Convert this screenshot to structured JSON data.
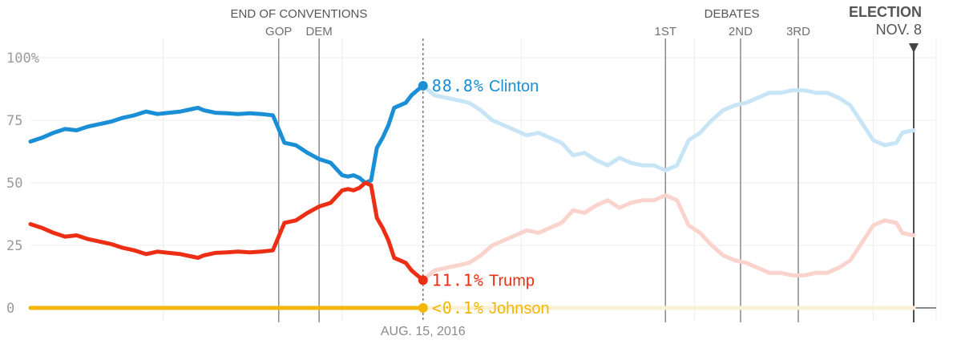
{
  "chart_data": {
    "type": "line",
    "y_ticks": [
      "100%",
      "75",
      "50",
      "25",
      "0"
    ],
    "ylim": [
      0,
      100
    ],
    "xlim": [
      "2016-06-08",
      "2016-11-08"
    ],
    "today": "2016-08-15",
    "today_label": "AUG. 15, 2016",
    "header": {
      "conventions": "END OF CONVENTIONS",
      "debates": "DEBATES",
      "election": "ELECTION",
      "election_date": "NOV. 8"
    },
    "events": [
      {
        "label": "GOP",
        "date": "2016-07-21"
      },
      {
        "label": "DEM",
        "date": "2016-07-28"
      },
      {
        "label": "1ST",
        "date": "2016-09-26"
      },
      {
        "label": "2ND",
        "date": "2016-10-09"
      },
      {
        "label": "3RD",
        "date": "2016-10-19"
      }
    ],
    "election_date": "2016-11-08",
    "series": [
      {
        "name": "Clinton",
        "color": "#1a8fd6",
        "faded_color": "#c8e5f6",
        "current_value": "88.8%",
        "values": [
          [
            "2016-06-08",
            66.5
          ],
          [
            "2016-06-10",
            68
          ],
          [
            "2016-06-12",
            70
          ],
          [
            "2016-06-14",
            71.5
          ],
          [
            "2016-06-16",
            71
          ],
          [
            "2016-06-18",
            72.5
          ],
          [
            "2016-06-20",
            73.5
          ],
          [
            "2016-06-22",
            74.5
          ],
          [
            "2016-06-24",
            76
          ],
          [
            "2016-06-26",
            77
          ],
          [
            "2016-06-28",
            78.5
          ],
          [
            "2016-06-30",
            77.5
          ],
          [
            "2016-07-02",
            78
          ],
          [
            "2016-07-04",
            78.5
          ],
          [
            "2016-07-06",
            79.5
          ],
          [
            "2016-07-07",
            80
          ],
          [
            "2016-07-08",
            79
          ],
          [
            "2016-07-10",
            78
          ],
          [
            "2016-07-12",
            77.8
          ],
          [
            "2016-07-14",
            77.5
          ],
          [
            "2016-07-16",
            77.8
          ],
          [
            "2016-07-18",
            77.5
          ],
          [
            "2016-07-20",
            77
          ],
          [
            "2016-07-22",
            66
          ],
          [
            "2016-07-24",
            65
          ],
          [
            "2016-07-26",
            62
          ],
          [
            "2016-07-28",
            59.5
          ],
          [
            "2016-07-30",
            58
          ],
          [
            "2016-08-01",
            53
          ],
          [
            "2016-08-02",
            52.5
          ],
          [
            "2016-08-03",
            53
          ],
          [
            "2016-08-04",
            52
          ],
          [
            "2016-08-05",
            50
          ],
          [
            "2016-08-06",
            51
          ],
          [
            "2016-08-07",
            64
          ],
          [
            "2016-08-08",
            68
          ],
          [
            "2016-08-09",
            73
          ],
          [
            "2016-08-10",
            80
          ],
          [
            "2016-08-11",
            81
          ],
          [
            "2016-08-12",
            82
          ],
          [
            "2016-08-13",
            85
          ],
          [
            "2016-08-14",
            87
          ],
          [
            "2016-08-15",
            88.8
          ]
        ],
        "projection": [
          [
            "2016-08-15",
            88.8
          ],
          [
            "2016-08-17",
            85
          ],
          [
            "2016-08-19",
            84
          ],
          [
            "2016-08-21",
            83
          ],
          [
            "2016-08-23",
            82
          ],
          [
            "2016-08-25",
            79
          ],
          [
            "2016-08-27",
            75
          ],
          [
            "2016-08-29",
            73
          ],
          [
            "2016-08-31",
            71
          ],
          [
            "2016-09-02",
            69
          ],
          [
            "2016-09-04",
            70
          ],
          [
            "2016-09-06",
            68
          ],
          [
            "2016-09-08",
            66
          ],
          [
            "2016-09-10",
            61
          ],
          [
            "2016-09-12",
            62
          ],
          [
            "2016-09-14",
            59
          ],
          [
            "2016-09-16",
            57
          ],
          [
            "2016-09-18",
            60
          ],
          [
            "2016-09-20",
            58
          ],
          [
            "2016-09-22",
            57
          ],
          [
            "2016-09-24",
            57
          ],
          [
            "2016-09-26",
            55
          ],
          [
            "2016-09-28",
            57
          ],
          [
            "2016-09-30",
            67
          ],
          [
            "2016-10-02",
            70
          ],
          [
            "2016-10-04",
            75
          ],
          [
            "2016-10-06",
            79
          ],
          [
            "2016-10-08",
            81
          ],
          [
            "2016-10-10",
            82
          ],
          [
            "2016-10-12",
            84
          ],
          [
            "2016-10-14",
            86
          ],
          [
            "2016-10-16",
            86
          ],
          [
            "2016-10-18",
            87
          ],
          [
            "2016-10-20",
            87
          ],
          [
            "2016-10-22",
            86
          ],
          [
            "2016-10-24",
            86
          ],
          [
            "2016-10-26",
            84
          ],
          [
            "2016-10-28",
            81
          ],
          [
            "2016-10-30",
            74
          ],
          [
            "2016-11-01",
            67
          ],
          [
            "2016-11-03",
            65
          ],
          [
            "2016-11-05",
            66
          ],
          [
            "2016-11-06",
            70
          ],
          [
            "2016-11-08",
            71
          ]
        ]
      },
      {
        "name": "Trump",
        "color": "#ec2f14",
        "faded_color": "#f9d3cc",
        "current_value": "11.1%",
        "values": [
          [
            "2016-06-08",
            33.5
          ],
          [
            "2016-06-10",
            32
          ],
          [
            "2016-06-12",
            30
          ],
          [
            "2016-06-14",
            28.5
          ],
          [
            "2016-06-16",
            29
          ],
          [
            "2016-06-18",
            27.5
          ],
          [
            "2016-06-20",
            26.5
          ],
          [
            "2016-06-22",
            25.5
          ],
          [
            "2016-06-24",
            24
          ],
          [
            "2016-06-26",
            23
          ],
          [
            "2016-06-28",
            21.5
          ],
          [
            "2016-06-30",
            22.5
          ],
          [
            "2016-07-02",
            22
          ],
          [
            "2016-07-04",
            21.5
          ],
          [
            "2016-07-06",
            20.5
          ],
          [
            "2016-07-07",
            20
          ],
          [
            "2016-07-08",
            21
          ],
          [
            "2016-07-10",
            22
          ],
          [
            "2016-07-12",
            22.2
          ],
          [
            "2016-07-14",
            22.5
          ],
          [
            "2016-07-16",
            22.2
          ],
          [
            "2016-07-18",
            22.5
          ],
          [
            "2016-07-20",
            23
          ],
          [
            "2016-07-22",
            34
          ],
          [
            "2016-07-24",
            35
          ],
          [
            "2016-07-26",
            38
          ],
          [
            "2016-07-28",
            40.5
          ],
          [
            "2016-07-30",
            42
          ],
          [
            "2016-08-01",
            47
          ],
          [
            "2016-08-02",
            47.5
          ],
          [
            "2016-08-03",
            47
          ],
          [
            "2016-08-04",
            48
          ],
          [
            "2016-08-05",
            50
          ],
          [
            "2016-08-06",
            49
          ],
          [
            "2016-08-07",
            36
          ],
          [
            "2016-08-08",
            32
          ],
          [
            "2016-08-09",
            27
          ],
          [
            "2016-08-10",
            20
          ],
          [
            "2016-08-11",
            19
          ],
          [
            "2016-08-12",
            18
          ],
          [
            "2016-08-13",
            15
          ],
          [
            "2016-08-14",
            13
          ],
          [
            "2016-08-15",
            11.1
          ]
        ],
        "projection": [
          [
            "2016-08-15",
            11.1
          ],
          [
            "2016-08-17",
            15
          ],
          [
            "2016-08-19",
            16
          ],
          [
            "2016-08-21",
            17
          ],
          [
            "2016-08-23",
            18
          ],
          [
            "2016-08-25",
            21
          ],
          [
            "2016-08-27",
            25
          ],
          [
            "2016-08-29",
            27
          ],
          [
            "2016-08-31",
            29
          ],
          [
            "2016-09-02",
            31
          ],
          [
            "2016-09-04",
            30
          ],
          [
            "2016-09-06",
            32
          ],
          [
            "2016-09-08",
            34
          ],
          [
            "2016-09-10",
            39
          ],
          [
            "2016-09-12",
            38
          ],
          [
            "2016-09-14",
            41
          ],
          [
            "2016-09-16",
            43
          ],
          [
            "2016-09-18",
            40
          ],
          [
            "2016-09-20",
            42
          ],
          [
            "2016-09-22",
            43
          ],
          [
            "2016-09-24",
            43
          ],
          [
            "2016-09-26",
            45
          ],
          [
            "2016-09-28",
            43
          ],
          [
            "2016-09-30",
            33
          ],
          [
            "2016-10-02",
            30
          ],
          [
            "2016-10-04",
            25
          ],
          [
            "2016-10-06",
            21
          ],
          [
            "2016-10-08",
            19
          ],
          [
            "2016-10-10",
            18
          ],
          [
            "2016-10-12",
            16
          ],
          [
            "2016-10-14",
            14
          ],
          [
            "2016-10-16",
            14
          ],
          [
            "2016-10-18",
            13
          ],
          [
            "2016-10-20",
            13
          ],
          [
            "2016-10-22",
            14
          ],
          [
            "2016-10-24",
            14
          ],
          [
            "2016-10-26",
            16
          ],
          [
            "2016-10-28",
            19
          ],
          [
            "2016-10-30",
            26
          ],
          [
            "2016-11-01",
            33
          ],
          [
            "2016-11-03",
            35
          ],
          [
            "2016-11-05",
            34
          ],
          [
            "2016-11-06",
            30
          ],
          [
            "2016-11-08",
            29
          ]
        ]
      },
      {
        "name": "Johnson",
        "color": "#f2b705",
        "faded_color": "#fbf0d2",
        "current_value": "<0.1%",
        "values": [
          [
            "2016-06-08",
            0
          ],
          [
            "2016-08-15",
            0
          ]
        ],
        "projection": [
          [
            "2016-08-15",
            0
          ],
          [
            "2016-11-08",
            0
          ]
        ]
      }
    ]
  }
}
